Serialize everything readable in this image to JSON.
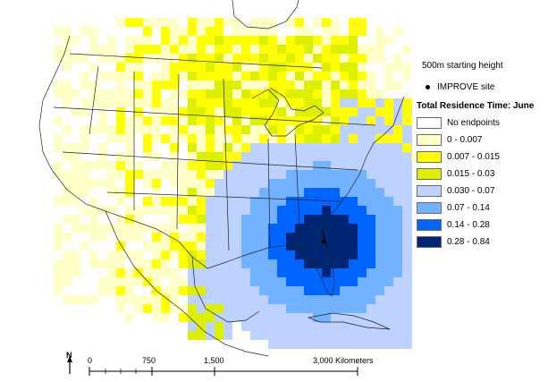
{
  "map": {
    "starting_height": "500m starting height",
    "site_legend": "IMPROVE site",
    "legend_title": "Total Residence Time: June",
    "legend_items": [
      {
        "label": "No endpoints",
        "color": "#ffffff"
      },
      {
        "label": "0 - 0.007",
        "color": "#ffffc8"
      },
      {
        "label": "0.007 - 0.015",
        "color": "#ffff00"
      },
      {
        "label": "0.015 - 0.03",
        "color": "#dcf000"
      },
      {
        "label": "0.030 - 0.07",
        "color": "#bed2ff"
      },
      {
        "label": "0.07 - 0.14",
        "color": "#73b2ff"
      },
      {
        "label": "0.14 - 0.28",
        "color": "#0064ff"
      },
      {
        "label": "0.28 - 0.84",
        "color": "#002673"
      }
    ],
    "scale_labels": [
      "0",
      "750",
      "1,500",
      "3,000 Kilometers"
    ],
    "north_label": "N"
  }
}
